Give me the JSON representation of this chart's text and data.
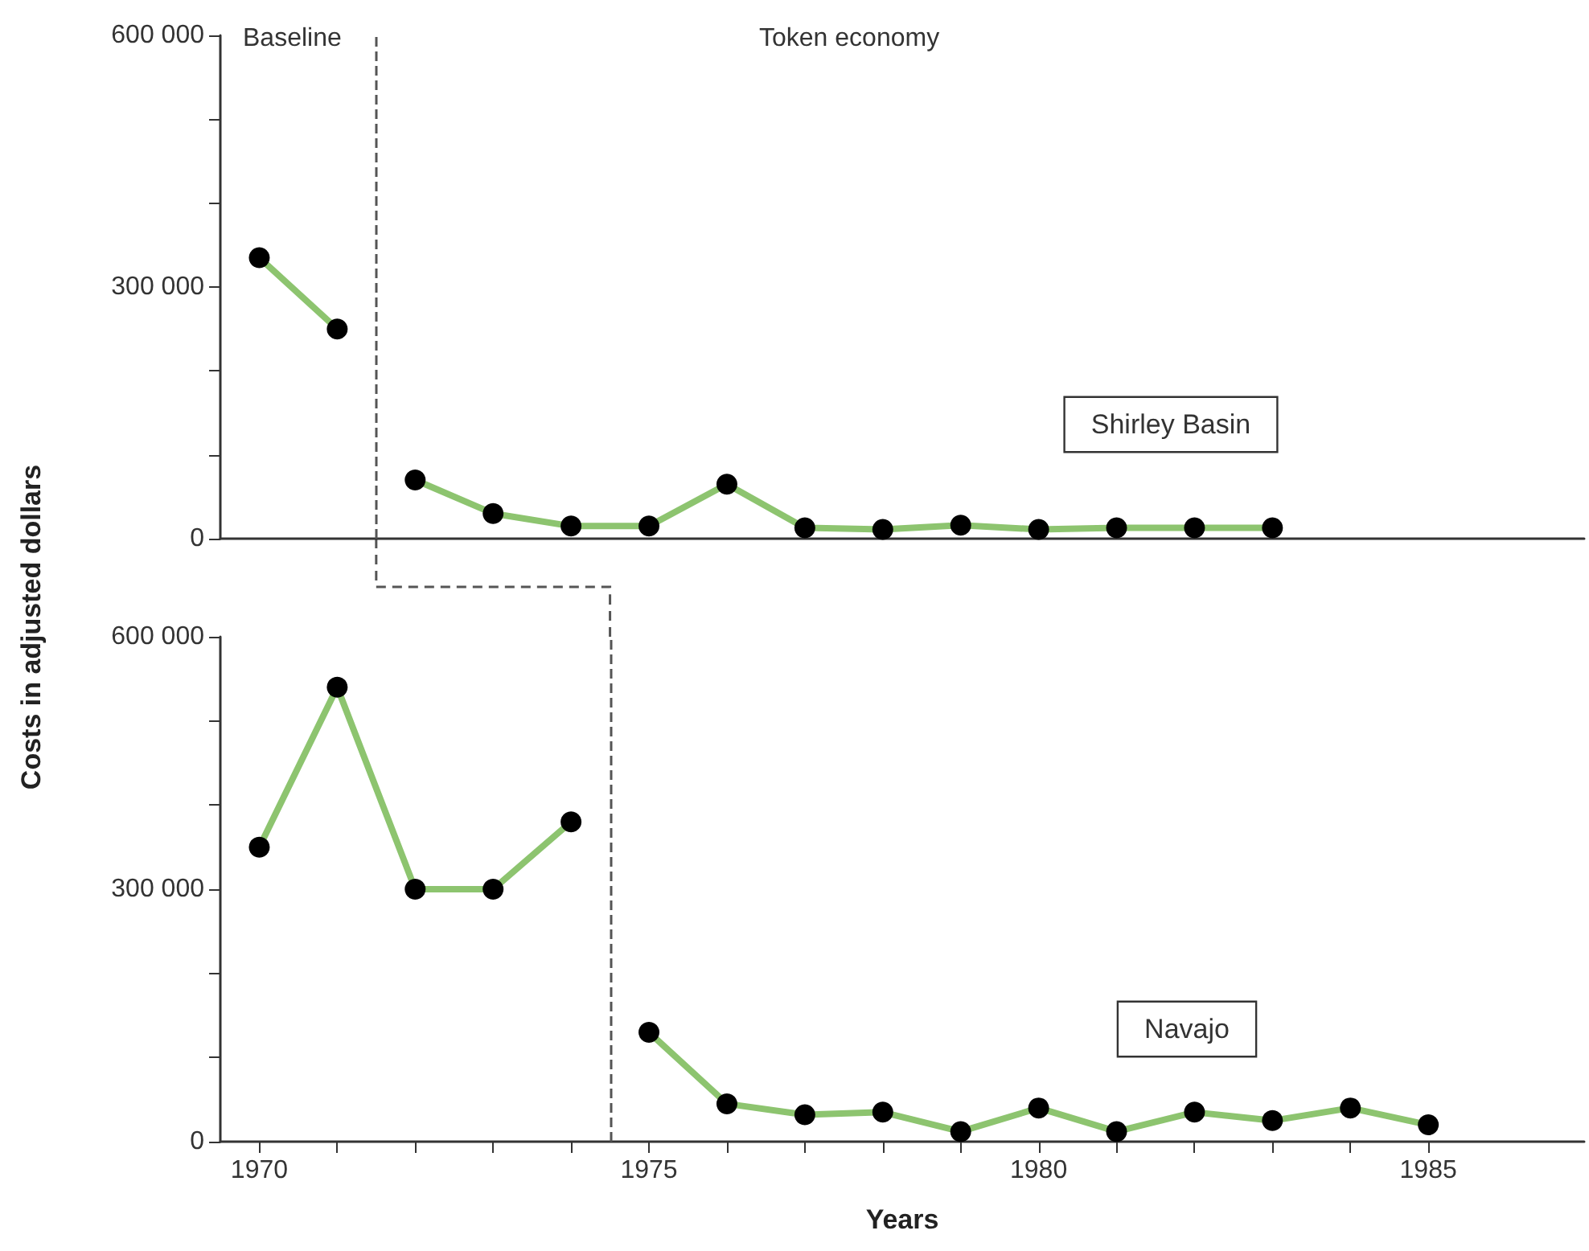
{
  "chart_data": [
    {
      "type": "line",
      "ylabel": "Costs in adjusted dollars",
      "annotations": [
        "Baseline",
        "Token economy"
      ],
      "series": [
        {
          "color": "#8dc46f",
          "x": [
            1970,
            1971
          ],
          "values": [
            335000,
            250000
          ]
        },
        {
          "name": "Shirley Basin",
          "color": "#8dc46f",
          "x": [
            1972,
            1973,
            1974,
            1975,
            1976,
            1977,
            1978,
            1979,
            1980,
            1981,
            1982,
            1983
          ],
          "values": [
            70000,
            30000,
            15000,
            15000,
            65000,
            13000,
            11000,
            16000,
            11000,
            13000,
            13000,
            13000
          ]
        }
      ],
      "xlim": [
        1969.5,
        1987
      ],
      "ylim": [
        0,
        600000
      ],
      "yticks": [
        {
          "value": 0,
          "label": "0"
        },
        {
          "value": 100000,
          "label": null
        },
        {
          "value": 200000,
          "label": null
        },
        {
          "value": 300000,
          "label": "300 000"
        },
        {
          "value": 400000,
          "label": null
        },
        {
          "value": 500000,
          "label": null
        },
        {
          "value": 600000,
          "label": "600 000"
        }
      ],
      "ref_lines": [
        {
          "axis": "x",
          "value": 1971.5,
          "color": "#555555",
          "line_style": "dashed"
        }
      ],
      "tick_labels": "y",
      "grid": false,
      "legend": false,
      "marker": "circle",
      "line_style": "solid"
    },
    {
      "type": "line",
      "xlabel": "Years",
      "series": [
        {
          "color": "#8dc46f",
          "x": [
            1970,
            1971,
            1972,
            1973,
            1974
          ],
          "values": [
            350000,
            540000,
            300000,
            300000,
            380000
          ]
        },
        {
          "name": "Navajo",
          "color": "#8dc46f",
          "x": [
            1975,
            1976,
            1977,
            1978,
            1979,
            1980,
            1981,
            1982,
            1983,
            1984,
            1985
          ],
          "values": [
            130000,
            45000,
            32000,
            35000,
            12000,
            40000,
            12000,
            35000,
            25000,
            40000,
            20000
          ]
        }
      ],
      "xlim": [
        1969.5,
        1987
      ],
      "ylim": [
        0,
        600000
      ],
      "xticks": [
        1970,
        {
          "value": 1971,
          "label": null
        },
        {
          "value": 1972,
          "label": null
        },
        {
          "value": 1973,
          "label": null
        },
        {
          "value": 1974,
          "label": null
        },
        1975,
        {
          "value": 1976,
          "label": null
        },
        {
          "value": 1977,
          "label": null
        },
        {
          "value": 1978,
          "label": null
        },
        {
          "value": 1979,
          "label": null
        },
        1980,
        {
          "value": 1981,
          "label": null
        },
        {
          "value": 1982,
          "label": null
        },
        {
          "value": 1983,
          "label": null
        },
        {
          "value": 1984,
          "label": null
        },
        1985
      ],
      "yticks": [
        {
          "value": 0,
          "label": "0"
        },
        {
          "value": 100000,
          "label": null
        },
        {
          "value": 200000,
          "label": null
        },
        {
          "value": 300000,
          "label": "300 000"
        },
        {
          "value": 400000,
          "label": null
        },
        {
          "value": 500000,
          "label": null
        },
        {
          "value": 600000,
          "label": "600 000"
        }
      ],
      "ref_lines": [
        {
          "axis": "x",
          "value": 1974.5,
          "color": "#555555",
          "line_style": "dashed"
        }
      ],
      "grid": false,
      "legend": false,
      "marker": "circle",
      "line_style": "solid"
    }
  ]
}
